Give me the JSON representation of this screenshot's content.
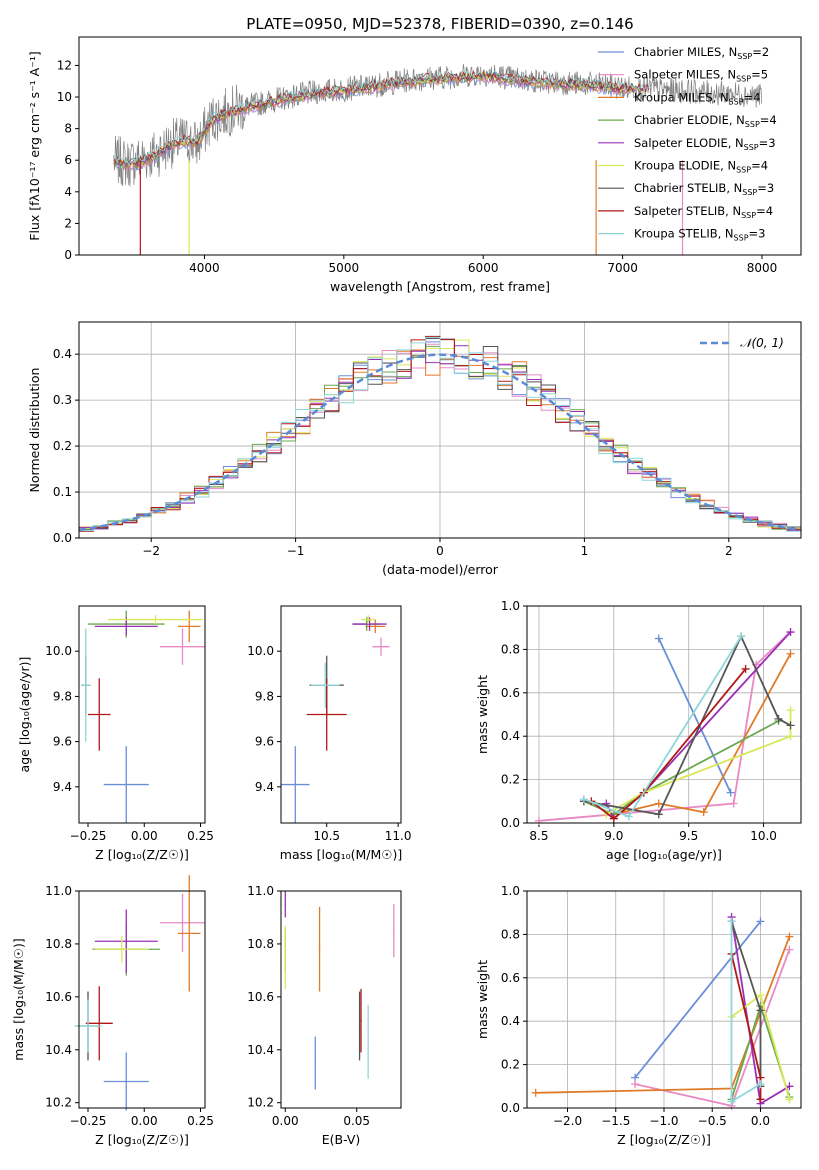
{
  "figure_title": "PLATE=0950, MJD=52378, FIBERID=0390, z=0.146",
  "colors": {
    "Chabrier MILES": "#6a8fd9",
    "Salpeter MILES": "#e889c4",
    "Kroupa MILES": "#e07b2a",
    "Chabrier ELODIE": "#6aa84f",
    "Salpeter ELODIE": "#9b30b6",
    "Kroupa ELODIE": "#d9e85a",
    "Chabrier STELIB": "#555555",
    "Salpeter STELIB": "#b01818",
    "Kroupa STELIB": "#8fd6d9",
    "gaussian": "#5b8ad6"
  },
  "chart_data": [
    {
      "id": "spectrum",
      "type": "line",
      "title": "PLATE=0950, MJD=52378, FIBERID=0390, z=0.146",
      "xlabel": "wavelength [Angstrom, rest frame]",
      "ylabel": "Flux [fλ10⁻¹⁷ erg cm⁻² s⁻¹ A⁻¹]",
      "xlim": [
        3100,
        8280
      ],
      "ylim": [
        0,
        13.8
      ],
      "xticks": [
        4000,
        5000,
        6000,
        7000,
        8000
      ],
      "yticks": [
        0,
        2,
        4,
        6,
        8,
        10,
        12
      ],
      "legend_position": "right",
      "data_x": [
        3350,
        3450,
        3550,
        3650,
        3750,
        3850,
        3950,
        4050,
        4150,
        4250,
        4400,
        4600,
        4800,
        5000,
        5200,
        5400,
        5600,
        5800,
        6000,
        6200,
        6400,
        6600,
        6800,
        7000,
        7200,
        7400,
        7600,
        7800,
        8000
      ],
      "data_y": [
        6.0,
        5.8,
        6.1,
        6.4,
        7.0,
        7.3,
        7.0,
        8.6,
        9.0,
        9.3,
        9.6,
        10.0,
        10.3,
        10.5,
        10.7,
        11.0,
        11.2,
        11.3,
        11.5,
        11.2,
        11.0,
        10.9,
        10.8,
        10.6,
        10.5,
        10.4,
        10.3,
        10.2,
        10.1
      ],
      "model_x": [
        3350,
        3450,
        3550,
        3650,
        3750,
        3850,
        3950,
        4050,
        4150,
        4250,
        4400,
        4600,
        4800,
        5000,
        5200,
        5400,
        5600,
        5800,
        6000,
        6200,
        6400,
        6600,
        6800,
        7000,
        7200
      ],
      "model_y": [
        5.9,
        5.7,
        5.9,
        6.3,
        6.9,
        7.2,
        7.1,
        8.5,
        8.9,
        9.2,
        9.5,
        9.9,
        10.2,
        10.4,
        10.6,
        10.9,
        11.1,
        11.2,
        11.3,
        11.1,
        10.9,
        10.8,
        10.7,
        10.5,
        10.4
      ],
      "series": [
        {
          "name": "Chabrier MILES, N_SSP=2",
          "label_main": "Chabrier MILES, N",
          "label_sub": "SSP",
          "label_tail": "=2"
        },
        {
          "name": "Salpeter MILES, N_SSP=5",
          "label_main": "Salpeter MILES, N",
          "label_sub": "SSP",
          "label_tail": "=5"
        },
        {
          "name": "Kroupa MILES, N_SSP=4",
          "label_main": "Kroupa MILES, N",
          "label_sub": "SSP",
          "label_tail": "=4"
        },
        {
          "name": "Chabrier ELODIE, N_SSP=4",
          "label_main": "Chabrier ELODIE, N",
          "label_sub": "SSP",
          "label_tail": "=4"
        },
        {
          "name": "Salpeter ELODIE, N_SSP=3",
          "label_main": "Salpeter ELODIE, N",
          "label_sub": "SSP",
          "label_tail": "=3"
        },
        {
          "name": "Kroupa ELODIE, N_SSP=4",
          "label_main": "Kroupa ELODIE, N",
          "label_sub": "SSP",
          "label_tail": "=4"
        },
        {
          "name": "Chabrier STELIB, N_SSP=3",
          "label_main": "Chabrier STELIB, N",
          "label_sub": "SSP",
          "label_tail": "=3"
        },
        {
          "name": "Salpeter STELIB, N_SSP=4",
          "label_main": "Salpeter STELIB, N",
          "label_sub": "SSP",
          "label_tail": "=4"
        },
        {
          "name": "Kroupa STELIB, N_SSP=3",
          "label_main": "Kroupa STELIB, N",
          "label_sub": "SSP",
          "label_tail": "=3"
        }
      ]
    },
    {
      "id": "residuals",
      "type": "line",
      "xlabel": "(data-model)/error",
      "ylabel": "Normed distribution",
      "xlim": [
        -2.5,
        2.5
      ],
      "ylim": [
        0,
        0.47
      ],
      "xticks": [
        -2,
        -1,
        0,
        1,
        2
      ],
      "yticks": [
        0.0,
        0.1,
        0.2,
        0.3,
        0.4
      ],
      "grid": true,
      "legend_position": "top-right",
      "gaussian_label": "𝒩(0, 1)",
      "bin_width": 0.1
    },
    {
      "id": "age-vs-z",
      "type": "scatter",
      "xlabel": "Z [log₁₀(Z/Z☉)]",
      "ylabel": "age  [log₁₀(age/yr)]",
      "xlim": [
        -0.29,
        0.27
      ],
      "ylim": [
        9.24,
        10.2
      ],
      "xticks": [
        -0.25,
        0.0,
        0.25
      ],
      "yticks": [
        9.4,
        9.6,
        9.8,
        10.0
      ],
      "points": [
        {
          "series": "Chabrier MILES",
          "x": -0.08,
          "xerr": 0.1,
          "y": 9.41,
          "yerr": 0.17
        },
        {
          "series": "Salpeter MILES",
          "x": 0.17,
          "xerr": 0.1,
          "y": 10.02,
          "yerr": 0.08
        },
        {
          "series": "Kroupa MILES",
          "x": 0.2,
          "xerr": 0.05,
          "y": 10.11,
          "yerr": 0.07
        },
        {
          "series": "Chabrier ELODIE",
          "x": -0.08,
          "xerr": 0.17,
          "y": 10.12,
          "yerr": 0.06
        },
        {
          "series": "Salpeter ELODIE",
          "x": -0.08,
          "xerr": 0.14,
          "y": 10.11,
          "yerr": 0.04
        },
        {
          "series": "Kroupa ELODIE",
          "x": 0.05,
          "xerr": 0.21,
          "y": 10.14,
          "yerr": 0.02
        },
        {
          "series": "Chabrier STELIB",
          "x": -0.26,
          "xerr": 0.02,
          "y": 9.85,
          "yerr": 0.13
        },
        {
          "series": "Salpeter STELIB",
          "x": -0.2,
          "xerr": 0.05,
          "y": 9.72,
          "yerr": 0.16
        },
        {
          "series": "Kroupa STELIB",
          "x": -0.26,
          "xerr": 0.02,
          "y": 9.85,
          "yerr": 0.25
        }
      ]
    },
    {
      "id": "age-vs-mass",
      "type": "scatter",
      "xlabel": "mass [log₁₀(M/M☉)]",
      "xlim": [
        10.18,
        11.02
      ],
      "ylim": [
        9.24,
        10.2
      ],
      "xticks": [
        10.5,
        11.0
      ],
      "yticks": [
        9.4,
        9.6,
        9.8,
        10.0
      ],
      "points": [
        {
          "series": "Chabrier MILES",
          "x": 10.28,
          "xerr": 0.1,
          "y": 9.41,
          "yerr": 0.17
        },
        {
          "series": "Salpeter MILES",
          "x": 10.88,
          "xerr": 0.06,
          "y": 10.02,
          "yerr": 0.04
        },
        {
          "series": "Kroupa MILES",
          "x": 10.84,
          "xerr": 0.07,
          "y": 10.11,
          "yerr": 0.03
        },
        {
          "series": "Chabrier ELODIE",
          "x": 10.78,
          "xerr": 0.1,
          "y": 10.12,
          "yerr": 0.03
        },
        {
          "series": "Salpeter ELODIE",
          "x": 10.8,
          "xerr": 0.12,
          "y": 10.12,
          "yerr": 0.03
        },
        {
          "series": "Kroupa ELODIE",
          "x": 10.79,
          "xerr": 0.05,
          "y": 10.14,
          "yerr": 0.02
        },
        {
          "series": "Chabrier STELIB",
          "x": 10.5,
          "xerr": 0.12,
          "y": 9.85,
          "yerr": 0.13
        },
        {
          "series": "Salpeter STELIB",
          "x": 10.5,
          "xerr": 0.14,
          "y": 9.72,
          "yerr": 0.16
        },
        {
          "series": "Kroupa STELIB",
          "x": 10.49,
          "xerr": 0.1,
          "y": 9.85,
          "yerr": 0.1
        }
      ]
    },
    {
      "id": "weight-vs-age",
      "type": "line",
      "xlabel": "age  [log₁₀(age/yr)]",
      "ylabel": "mass weight",
      "xlim": [
        8.42,
        10.25
      ],
      "ylim": [
        0,
        1
      ],
      "xticks": [
        8.5,
        9.0,
        9.5,
        10.0
      ],
      "yticks": [
        0.0,
        0.2,
        0.4,
        0.6,
        0.8,
        1.0
      ],
      "grid": true,
      "series": [
        {
          "name": "Chabrier MILES",
          "x": [
            9.3,
            9.78
          ],
          "y": [
            0.85,
            0.14
          ]
        },
        {
          "name": "Salpeter MILES",
          "x": [
            8.5,
            9.0,
            9.8,
            9.95,
            10.18
          ],
          "y": [
            0.01,
            0.04,
            0.09,
            0.73,
            0.88
          ]
        },
        {
          "name": "Kroupa MILES",
          "x": [
            9.0,
            9.3,
            9.6,
            10.18
          ],
          "y": [
            0.04,
            0.09,
            0.05,
            0.78
          ]
        },
        {
          "name": "Chabrier ELODIE",
          "x": [
            8.8,
            9.0,
            9.2,
            10.1
          ],
          "y": [
            0.1,
            0.04,
            0.14,
            0.47
          ]
        },
        {
          "name": "Salpeter ELODIE",
          "x": [
            8.95,
            9.0,
            9.2,
            10.18
          ],
          "y": [
            0.09,
            0.02,
            0.14,
            0.88
          ]
        },
        {
          "name": "Kroupa ELODIE",
          "x": [
            8.95,
            9.2,
            10.18,
            10.18
          ],
          "y": [
            0.04,
            0.14,
            0.4,
            0.52
          ]
        },
        {
          "name": "Chabrier STELIB",
          "x": [
            8.8,
            9.3,
            9.85,
            10.1,
            10.18
          ],
          "y": [
            0.1,
            0.04,
            0.86,
            0.48,
            0.45
          ]
        },
        {
          "name": "Salpeter STELIB",
          "x": [
            8.85,
            9.0,
            9.2,
            9.88
          ],
          "y": [
            0.1,
            0.02,
            0.14,
            0.71
          ]
        },
        {
          "name": "Kroupa STELIB",
          "x": [
            8.8,
            9.1,
            9.85
          ],
          "y": [
            0.11,
            0.03,
            0.86
          ]
        }
      ]
    },
    {
      "id": "mass-vs-z",
      "type": "scatter",
      "xlabel": "Z [log₁₀(Z/Z☉)]",
      "ylabel": "mass [log₁₀(M/M☉)]",
      "xlim": [
        -0.29,
        0.27
      ],
      "ylim": [
        10.18,
        11.0
      ],
      "xticks": [
        -0.25,
        0.0,
        0.25
      ],
      "yticks": [
        10.2,
        10.4,
        10.6,
        10.8,
        11.0
      ],
      "points": [
        {
          "series": "Chabrier MILES",
          "x": -0.08,
          "xerr": 0.1,
          "y": 10.28,
          "yerr": 0.11
        },
        {
          "series": "Salpeter MILES",
          "x": 0.17,
          "xerr": 0.1,
          "y": 10.88,
          "yerr": 0.11
        },
        {
          "series": "Kroupa MILES",
          "x": 0.2,
          "xerr": 0.05,
          "y": 10.84,
          "yerr": 0.22
        },
        {
          "series": "Chabrier ELODIE",
          "x": -0.08,
          "xerr": 0.15,
          "y": 10.78,
          "yerr": 0.1
        },
        {
          "series": "Salpeter ELODIE",
          "x": -0.08,
          "xerr": 0.14,
          "y": 10.81,
          "yerr": 0.12
        },
        {
          "series": "Kroupa ELODIE",
          "x": -0.1,
          "xerr": 0.12,
          "y": 10.78,
          "yerr": 0.05
        },
        {
          "series": "Chabrier STELIB",
          "x": -0.25,
          "xerr": 0.05,
          "y": 10.49,
          "yerr": 0.13
        },
        {
          "series": "Salpeter STELIB",
          "x": -0.2,
          "xerr": 0.06,
          "y": 10.5,
          "yerr": 0.14
        },
        {
          "series": "Kroupa STELIB",
          "x": -0.25,
          "xerr": 0.06,
          "y": 10.49,
          "yerr": 0.1
        }
      ]
    },
    {
      "id": "mass-vs-ebv",
      "type": "scatter",
      "xlabel": "E(B-V)",
      "xlim": [
        -0.003,
        0.081
      ],
      "ylim": [
        10.18,
        11.0
      ],
      "xticks": [
        0.0,
        0.05
      ],
      "yticks": [
        10.2,
        10.4,
        10.6,
        10.8,
        11.0
      ],
      "points": [
        {
          "series": "Chabrier MILES",
          "x": 0.021,
          "y": 10.35,
          "yerr": 0.1
        },
        {
          "series": "Salpeter MILES",
          "x": 0.076,
          "y": 10.85,
          "yerr": 0.1
        },
        {
          "series": "Kroupa MILES",
          "x": 0.024,
          "y": 10.78,
          "yerr": 0.16
        },
        {
          "series": "Chabrier ELODIE",
          "x": 0.0,
          "y": 10.78,
          "yerr": 0.08
        },
        {
          "series": "Salpeter ELODIE",
          "x": 0.0,
          "y": 10.95,
          "yerr": 0.05
        },
        {
          "series": "Kroupa ELODIE",
          "x": 0.0,
          "y": 10.75,
          "yerr": 0.12
        },
        {
          "series": "Chabrier STELIB",
          "x": 0.052,
          "y": 10.49,
          "yerr": 0.13
        },
        {
          "series": "Salpeter STELIB",
          "x": 0.053,
          "y": 10.51,
          "yerr": 0.12
        },
        {
          "series": "Kroupa STELIB",
          "x": 0.058,
          "y": 10.43,
          "yerr": 0.14
        }
      ]
    },
    {
      "id": "weight-vs-z",
      "type": "line",
      "xlabel": "Z [log₁₀(Z/Z☉)]",
      "ylabel": "mass weight",
      "xlim": [
        -2.42,
        0.42
      ],
      "ylim": [
        0,
        1
      ],
      "xticks": [
        -2.0,
        -1.5,
        -1.0,
        -0.5,
        0.0
      ],
      "yticks": [
        0.0,
        0.2,
        0.4,
        0.6,
        0.8,
        1.0
      ],
      "grid": true,
      "series": [
        {
          "name": "Chabrier MILES",
          "x": [
            -1.3,
            0.0
          ],
          "y": [
            0.14,
            0.86
          ]
        },
        {
          "name": "Salpeter MILES",
          "x": [
            -1.3,
            -0.3,
            0.3
          ],
          "y": [
            0.11,
            0.01,
            0.73
          ]
        },
        {
          "name": "Kroupa MILES",
          "x": [
            -2.33,
            -0.3,
            0.3
          ],
          "y": [
            0.07,
            0.09,
            0.79
          ]
        },
        {
          "name": "Chabrier ELODIE",
          "x": [
            -0.3,
            0.0,
            0.3
          ],
          "y": [
            0.04,
            0.47,
            0.05
          ]
        },
        {
          "name": "Salpeter ELODIE",
          "x": [
            -0.3,
            0.0,
            0.3
          ],
          "y": [
            0.88,
            0.02,
            0.1
          ]
        },
        {
          "name": "Kroupa ELODIE",
          "x": [
            -0.3,
            0.0,
            0.3
          ],
          "y": [
            0.42,
            0.52,
            0.04
          ]
        },
        {
          "name": "Chabrier STELIB",
          "x": [
            -0.3,
            0.0,
            0.0
          ],
          "y": [
            0.86,
            0.45,
            0.1
          ]
        },
        {
          "name": "Salpeter STELIB",
          "x": [
            -0.3,
            0.0,
            0.0
          ],
          "y": [
            0.71,
            0.14,
            0.04
          ]
        },
        {
          "name": "Kroupa STELIB",
          "x": [
            -0.3,
            -0.3,
            0.0
          ],
          "y": [
            0.86,
            0.03,
            0.11
          ]
        }
      ]
    }
  ]
}
